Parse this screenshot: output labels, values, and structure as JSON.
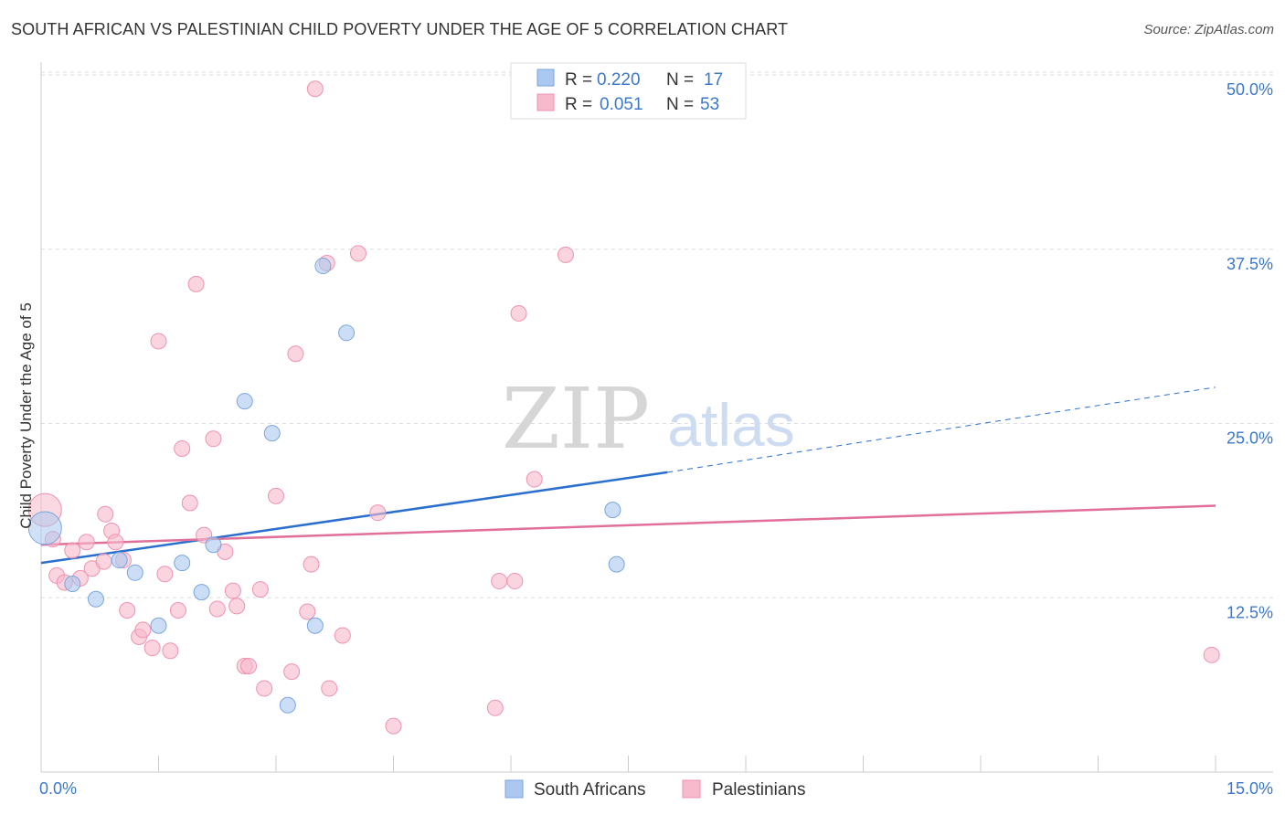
{
  "title": "SOUTH AFRICAN VS PALESTINIAN CHILD POVERTY UNDER THE AGE OF 5 CORRELATION CHART",
  "source": "Source: ZipAtlas.com",
  "watermark": {
    "part1": "ZIP",
    "part2": "atlas"
  },
  "colors": {
    "blue_fill": "#aac8f0",
    "blue_stroke": "#7aa6dd",
    "blue_line": "#2a6fce",
    "pink_fill": "#f7b9cc",
    "pink_stroke": "#ee92b0",
    "pink_line": "#e0709a",
    "value_text": "#3c78c8",
    "grid": "#dddddd"
  },
  "chart_data": {
    "type": "scatter",
    "title": "SOUTH AFRICAN VS PALESTINIAN CHILD POVERTY UNDER THE AGE OF 5 CORRELATION CHART",
    "xlabel": "",
    "ylabel": "Child Poverty Under the Age of 5",
    "xlim": [
      0,
      15
    ],
    "ylim": [
      0,
      50
    ],
    "x_tick_labels": [
      "0.0%",
      "15.0%"
    ],
    "y_ticks": [
      12.5,
      25.0,
      37.5,
      50.0
    ],
    "y_tick_labels": [
      "12.5%",
      "25.0%",
      "37.5%",
      "50.0%"
    ],
    "grid": "horizontal dashed",
    "legend_position": "bottom-center",
    "stats_box": [
      {
        "series": "South Africans",
        "r_label": "R = ",
        "r": "0.220",
        "n_label": "N = ",
        "n": "17"
      },
      {
        "series": "Palestinians",
        "r_label": "R = ",
        "r": "0.051",
        "n_label": "N = ",
        "n": "53"
      }
    ],
    "series": [
      {
        "name": "South Africans",
        "color": "#aac8f0",
        "points": [
          [
            0.05,
            17.5
          ],
          [
            0.4,
            13.5
          ],
          [
            0.7,
            12.4
          ],
          [
            1.0,
            15.2
          ],
          [
            1.2,
            14.3
          ],
          [
            1.5,
            10.5
          ],
          [
            1.8,
            15.0
          ],
          [
            2.05,
            12.9
          ],
          [
            2.2,
            16.3
          ],
          [
            2.6,
            26.6
          ],
          [
            2.95,
            24.3
          ],
          [
            3.15,
            4.8
          ],
          [
            3.5,
            10.5
          ],
          [
            3.6,
            36.3
          ],
          [
            3.9,
            31.5
          ],
          [
            7.3,
            18.8
          ],
          [
            7.35,
            14.9
          ]
        ],
        "trend": {
          "x": [
            0,
            8.0
          ],
          "y": [
            15.0,
            21.5
          ],
          "dashed_x": [
            8.0,
            15.0
          ],
          "dashed_y": [
            21.5,
            27.6
          ]
        }
      },
      {
        "name": "Palestinians",
        "color": "#f7b9cc",
        "points": [
          [
            0.05,
            18.8
          ],
          [
            0.15,
            16.7
          ],
          [
            0.2,
            14.1
          ],
          [
            0.3,
            13.6
          ],
          [
            0.4,
            15.9
          ],
          [
            0.5,
            13.9
          ],
          [
            0.58,
            16.5
          ],
          [
            0.65,
            14.6
          ],
          [
            0.8,
            15.1
          ],
          [
            0.82,
            18.5
          ],
          [
            0.9,
            17.3
          ],
          [
            0.95,
            16.5
          ],
          [
            1.05,
            15.2
          ],
          [
            1.1,
            11.6
          ],
          [
            1.25,
            9.7
          ],
          [
            1.3,
            10.2
          ],
          [
            1.42,
            8.9
          ],
          [
            1.5,
            30.9
          ],
          [
            1.58,
            14.2
          ],
          [
            1.65,
            8.7
          ],
          [
            1.75,
            11.6
          ],
          [
            1.8,
            23.2
          ],
          [
            1.9,
            19.3
          ],
          [
            1.98,
            35.0
          ],
          [
            2.08,
            17.0
          ],
          [
            2.2,
            23.9
          ],
          [
            2.25,
            11.7
          ],
          [
            2.35,
            15.8
          ],
          [
            2.45,
            13.0
          ],
          [
            2.5,
            11.9
          ],
          [
            2.6,
            7.6
          ],
          [
            2.65,
            7.6
          ],
          [
            2.8,
            13.1
          ],
          [
            2.85,
            6.0
          ],
          [
            3.0,
            19.8
          ],
          [
            3.2,
            7.2
          ],
          [
            3.25,
            30.0
          ],
          [
            3.4,
            11.5
          ],
          [
            3.45,
            14.9
          ],
          [
            3.5,
            49.0
          ],
          [
            3.65,
            36.5
          ],
          [
            3.68,
            6.0
          ],
          [
            3.85,
            9.8
          ],
          [
            4.05,
            37.2
          ],
          [
            4.3,
            18.6
          ],
          [
            4.5,
            3.3
          ],
          [
            5.8,
            4.6
          ],
          [
            5.85,
            13.7
          ],
          [
            6.05,
            13.7
          ],
          [
            6.1,
            32.9
          ],
          [
            6.3,
            21.0
          ],
          [
            6.7,
            37.1
          ],
          [
            14.95,
            8.4
          ]
        ],
        "trend": {
          "x": [
            0,
            15.0
          ],
          "y": [
            16.3,
            19.1
          ]
        }
      }
    ]
  }
}
